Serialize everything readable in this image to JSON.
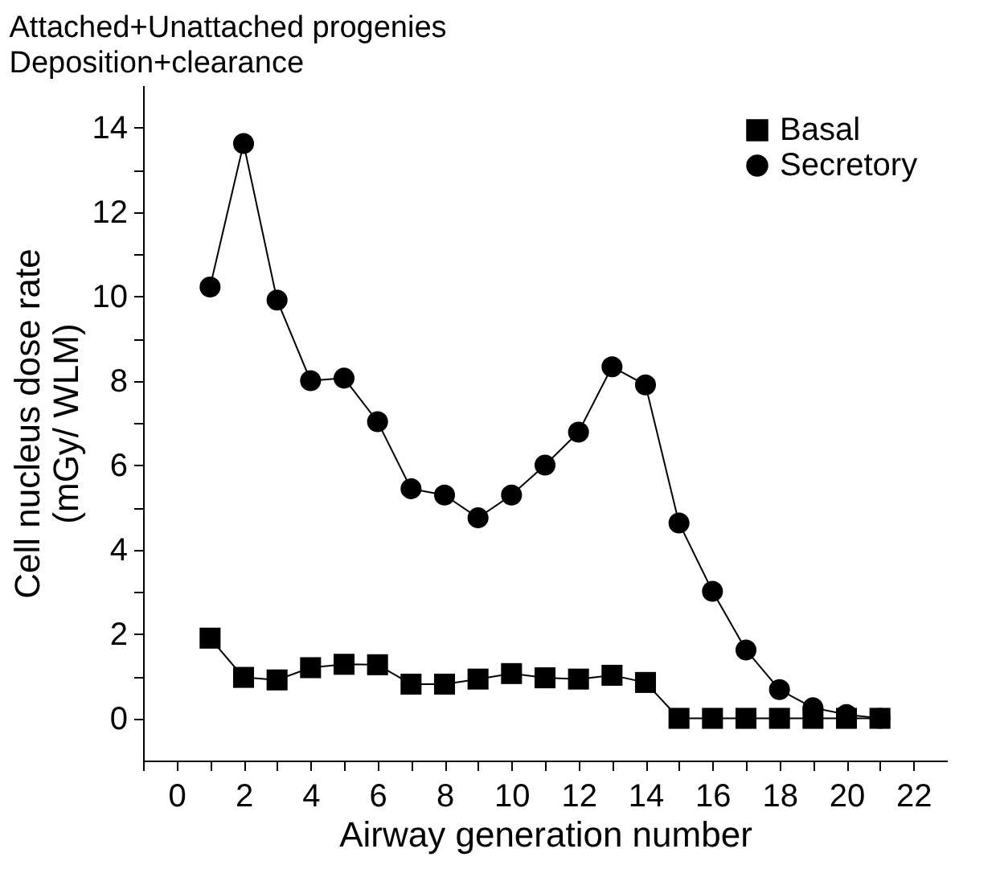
{
  "chart_data": {
    "type": "line",
    "title": "Attached+Unattached progenies",
    "subtitle": "Deposition+clearance",
    "xlabel": "Airway generation number",
    "ylabel": "Cell nucleus dose rate\n(mGy/ WLM)",
    "x": [
      1,
      2,
      3,
      4,
      5,
      6,
      7,
      8,
      9,
      10,
      11,
      12,
      13,
      14,
      15,
      16,
      17,
      18,
      19,
      20,
      21
    ],
    "series": [
      {
        "name": "Basal",
        "color": "#000000",
        "marker": "square",
        "values": [
          1.9,
          0.97,
          0.91,
          1.2,
          1.28,
          1.27,
          0.81,
          0.81,
          0.93,
          1.06,
          0.96,
          0.93,
          1.02,
          0.85,
          0,
          0,
          0,
          0,
          0,
          0,
          0
        ]
      },
      {
        "name": "Secretory",
        "color": "#000000",
        "marker": "circle",
        "values": [
          10.22,
          13.62,
          9.91,
          8.0,
          8.06,
          7.03,
          5.44,
          5.29,
          4.75,
          5.29,
          6.0,
          6.78,
          8.33,
          7.9,
          4.63,
          3.01,
          1.62,
          0.68,
          0.25,
          0.09,
          0
        ]
      }
    ],
    "xlim": [
      -1,
      23
    ],
    "xticks": [
      {
        "value": -1,
        "label": null
      },
      0,
      {
        "value": 1,
        "label": null
      },
      2,
      {
        "value": 3,
        "label": null
      },
      4,
      {
        "value": 5,
        "label": null
      },
      6,
      {
        "value": 7,
        "label": null
      },
      8,
      {
        "value": 9,
        "label": null
      },
      10,
      {
        "value": 11,
        "label": null
      },
      12,
      {
        "value": 13,
        "label": null
      },
      14,
      {
        "value": 15,
        "label": null
      },
      16,
      {
        "value": 17,
        "label": null
      },
      18,
      {
        "value": 19,
        "label": null
      },
      20,
      {
        "value": 21,
        "label": null
      },
      22
    ],
    "ylim": [
      -1,
      15
    ],
    "yticks": [
      0,
      {
        "value": 1,
        "label": null
      },
      2,
      {
        "value": 3,
        "label": null
      },
      4,
      {
        "value": 5,
        "label": null
      },
      6,
      {
        "value": 7,
        "label": null
      },
      8,
      {
        "value": 9,
        "label": null
      },
      10,
      {
        "value": 11,
        "label": null
      },
      12,
      {
        "value": 13,
        "label": null
      },
      14
    ],
    "grid": false,
    "legend": "top right",
    "line_style": "solid"
  }
}
